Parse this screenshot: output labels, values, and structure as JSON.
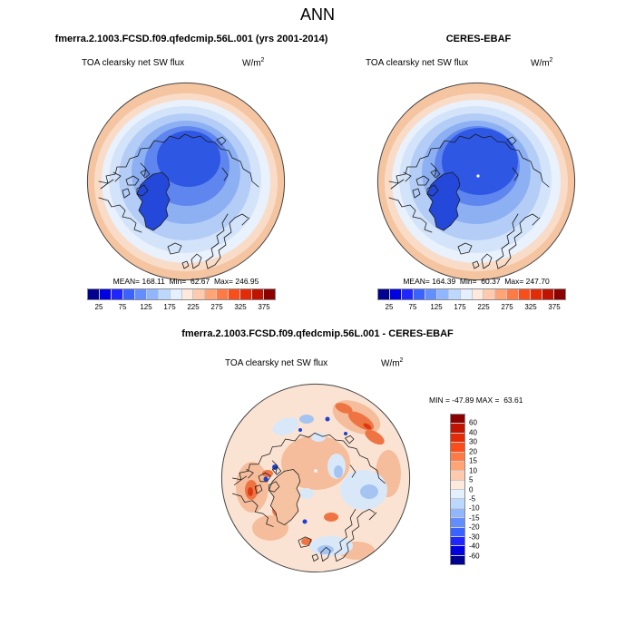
{
  "title": "ANN",
  "panels": {
    "model": {
      "header": "fmerra.2.1003.FCSD.f09.qfedcmip.56L.001 (yrs 2001-2014)",
      "variable": "TOA clearsky net SW flux",
      "units": "W/m",
      "units_exp": "2",
      "stats": "MEAN= 168.11  Min=  62.67  Max= 246.95"
    },
    "obs": {
      "header": "CERES-EBAF",
      "variable": "TOA clearsky net SW flux",
      "units": "W/m",
      "units_exp": "2",
      "stats": "MEAN= 164.39  Min=  60.37  Max= 247.70"
    },
    "diff": {
      "header": "fmerra.2.1003.FCSD.f09.qfedcmip.56L.001 - CERES-EBAF",
      "variable": "TOA clearsky net SW flux",
      "units": "W/m",
      "units_exp": "2",
      "stats": "MIN = -47.89 MAX =  63.61"
    }
  },
  "colorbars": {
    "main": {
      "orientation": "horizontal",
      "colors": [
        "#000091",
        "#0000e0",
        "#2026ff",
        "#3a62ff",
        "#638eff",
        "#8fb6ff",
        "#bcd8ff",
        "#e4efff",
        "#ffe9dd",
        "#ffcaad",
        "#ffa475",
        "#ff7a45",
        "#fa4d1c",
        "#e42b08",
        "#c01300",
        "#8c0000"
      ],
      "labels": [
        "25",
        "75",
        "125",
        "175",
        "225",
        "275",
        "325",
        "375"
      ]
    },
    "diff": {
      "orientation": "vertical",
      "colors": [
        "#8c0000",
        "#c01300",
        "#e42b08",
        "#fa4d1c",
        "#ff7a45",
        "#ffa475",
        "#ffcaad",
        "#ffe9dd",
        "#e4efff",
        "#bcd8ff",
        "#8fb6ff",
        "#638eff",
        "#3a62ff",
        "#2026ff",
        "#0000e0",
        "#000091"
      ],
      "labels": [
        "60",
        "40",
        "30",
        "20",
        "15",
        "10",
        "5",
        "0",
        "-5",
        "-10",
        "-15",
        "-20",
        "-30",
        "-40",
        "-60"
      ]
    }
  },
  "chart_data": [
    {
      "type": "heatmap",
      "subtype": "filled-contour-map",
      "projection": "north-polar-stereographic",
      "season": "ANN",
      "title": "fmerra.2.1003.FCSD.f09.qfedcmip.56L.001 (yrs 2001-2014)",
      "variable": "TOA clearsky net SW flux",
      "units": "W/m2",
      "stats": {
        "mean": 168.11,
        "min": 62.67,
        "max": 246.95
      },
      "colorbar_tick_labels": [
        25,
        75,
        125,
        175,
        225,
        275,
        325,
        375
      ],
      "n_color_cells": 16,
      "palette": "blue-to-red",
      "legend_position": "bottom",
      "description": "Low values (deep blue, ~75-125 W/m2) over central Arctic Ocean and Greenland, increasing outward to ~200-225 W/m2 (peach) at the map edge (~50N)."
    },
    {
      "type": "heatmap",
      "subtype": "filled-contour-map",
      "projection": "north-polar-stereographic",
      "season": "ANN",
      "title": "CERES-EBAF",
      "variable": "TOA clearsky net SW flux",
      "units": "W/m2",
      "stats": {
        "mean": 164.39,
        "min": 60.37,
        "max": 247.7
      },
      "colorbar_tick_labels": [
        25,
        75,
        125,
        175,
        225,
        275,
        325,
        375
      ],
      "n_color_cells": 16,
      "palette": "blue-to-red",
      "legend_position": "bottom",
      "description": "Same spatial pattern as model panel; slightly larger deep-blue core; small white missing-data dot at the pole."
    },
    {
      "type": "heatmap",
      "subtype": "filled-contour-difference-map",
      "projection": "north-polar-stereographic",
      "season": "ANN",
      "title": "fmerra.2.1003.FCSD.f09.qfedcmip.56L.001 - CERES-EBAF",
      "variable": "TOA clearsky net SW flux",
      "units": "W/m2",
      "stats": {
        "min": -47.89,
        "max": 63.61
      },
      "colorbar_tick_labels": [
        60,
        40,
        30,
        20,
        15,
        10,
        5,
        0,
        -5,
        -10,
        -15,
        -20,
        -30,
        -40,
        -60
      ],
      "n_color_cells": 16,
      "palette": "red-to-blue (positive red on top)",
      "legend_position": "right",
      "description": "Mostly weak positive differences (0 to +10, pale peach) with orange streaks (+15 to +40) over Siberia/land edges, pale blue (-5 to -15) over Barents/Kara seas and North Atlantic, and small deep-blue spots (< -30) along Canadian Archipelago and Greenland coasts."
    }
  ]
}
